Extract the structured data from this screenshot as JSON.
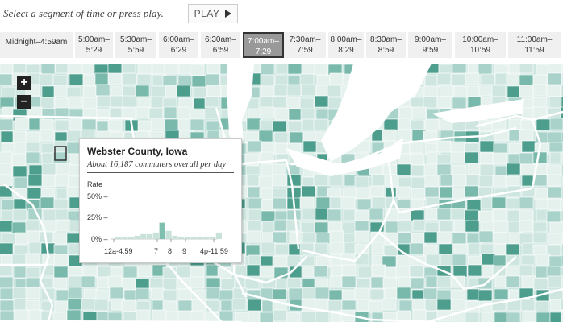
{
  "header": {
    "instruction": "Select a segment of time or press play.",
    "play_label": "PLAY"
  },
  "time_segments": [
    {
      "label": "Midnight–4:59am",
      "selected": false
    },
    {
      "label": "5:00am–\n5:29",
      "selected": false
    },
    {
      "label": "5:30am–\n5:59",
      "selected": false
    },
    {
      "label": "6:00am–\n6:29",
      "selected": false
    },
    {
      "label": "6:30am–\n6:59",
      "selected": false
    },
    {
      "label": "7:00am–\n7:29",
      "selected": true
    },
    {
      "label": "7:30am–\n7:59",
      "selected": false
    },
    {
      "label": "8:00am–\n8:29",
      "selected": false
    },
    {
      "label": "8:30am–\n8:59",
      "selected": false
    },
    {
      "label": "9:00am–\n9:59",
      "selected": false
    },
    {
      "label": "10:00am–\n10:59",
      "selected": false
    },
    {
      "label": "11:00am–\n11:59",
      "selected": false
    }
  ],
  "map": {
    "zoom_in_label": "+",
    "zoom_out_label": "–",
    "colors": {
      "base": "#cfe6e0",
      "light": "#e4f1ed",
      "mid": "#a9d3ca",
      "dark": "#79b9ab",
      "darkest": "#4e9e8e",
      "lake": "#ffffff",
      "border": "#ffffff",
      "highlight_stroke": "#333333"
    }
  },
  "tooltip": {
    "title": "Webster County, Iowa",
    "subtitle": "About 16,187 commuters overall per day",
    "rate_label": "Rate",
    "y_ticks": [
      "50% –",
      "25% –",
      "0% –"
    ],
    "x_labels": [
      "12a-4:59",
      "7",
      "8",
      "9",
      "4p-11:59"
    ],
    "bar_values": [
      1,
      1,
      1,
      2,
      3,
      3,
      4,
      10,
      5,
      2,
      1,
      1,
      1,
      1,
      1,
      1,
      4
    ],
    "selected_bar_index": 7,
    "bar_color": "#c8e2da",
    "selected_bar_color": "#7fbfb0"
  }
}
